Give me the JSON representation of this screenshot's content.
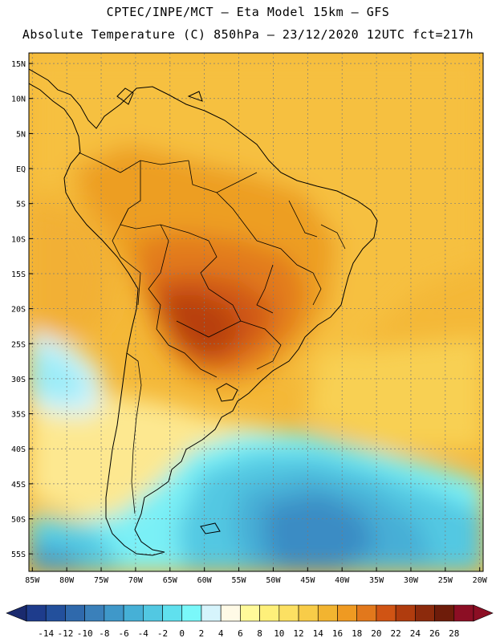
{
  "header": {
    "line1": "CPTEC/INPE/MCT –  Eta Model 15km – GFS",
    "line2": "Absolute Temperature (C) 850hPa – 23/12/2020 12UTC fct=217h"
  },
  "map": {
    "lat_labels": [
      "15N",
      "10N",
      "5N",
      "EQ",
      "5S",
      "10S",
      "15S",
      "20S",
      "25S",
      "30S",
      "35S",
      "40S",
      "45S",
      "50S",
      "55S"
    ],
    "lon_labels": [
      "85W",
      "80W",
      "75W",
      "70W",
      "65W",
      "60W",
      "55W",
      "50W",
      "45W",
      "40W",
      "35W",
      "30W",
      "25W",
      "20W"
    ],
    "lat_range": [
      -57.5,
      16.5
    ],
    "lon_range": [
      -85.5,
      -19.5
    ]
  },
  "legend": {
    "ticks": [
      "-14",
      "-12",
      "-10",
      "-8",
      "-6",
      "-4",
      "-2",
      "0",
      "2",
      "4",
      "6",
      "8",
      "10",
      "12",
      "14",
      "16",
      "18",
      "20",
      "22",
      "24",
      "26",
      "28"
    ],
    "colors": [
      "#1e3c8c",
      "#23509c",
      "#2f69ac",
      "#3a80ba",
      "#3f98c9",
      "#46b0d6",
      "#52c8e2",
      "#60e0ee",
      "#7af8fa",
      "#d6f4fc",
      "#fffae6",
      "#fffa9a",
      "#fef07a",
      "#fce062",
      "#f8cc48",
      "#f2b430",
      "#ef9a22",
      "#e2781c",
      "#d05414",
      "#b03c0e",
      "#8c2a0c",
      "#6e1c0a",
      "#8c0e24"
    ],
    "left_arrow_color": "#1a2a6e",
    "right_arrow_color": "#8c0e24"
  }
}
